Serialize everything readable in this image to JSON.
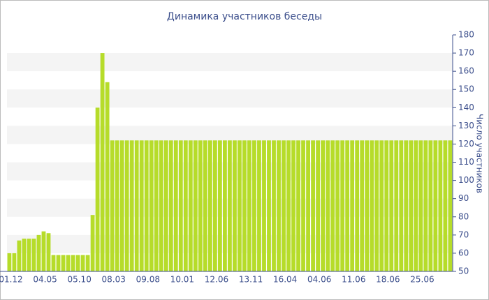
{
  "chart_data": {
    "type": "bar",
    "title": "Динамика участников беседы",
    "y_label": "Число участников",
    "categories": [
      "01.12",
      null,
      null,
      null,
      null,
      null,
      null,
      "04.05",
      null,
      null,
      null,
      null,
      null,
      null,
      "05.10",
      null,
      null,
      null,
      null,
      null,
      null,
      "08.03",
      null,
      null,
      null,
      null,
      null,
      null,
      "09.08",
      null,
      null,
      null,
      null,
      null,
      null,
      "10.01",
      null,
      null,
      null,
      null,
      null,
      null,
      "12.06",
      null,
      null,
      null,
      null,
      null,
      null,
      "13.11",
      null,
      null,
      null,
      null,
      null,
      null,
      "16.04",
      null,
      null,
      null,
      null,
      null,
      null,
      "04.06",
      null,
      null,
      null,
      null,
      null,
      null,
      "11.06",
      null,
      null,
      null,
      null,
      null,
      null,
      "18.06",
      null,
      null,
      null,
      null,
      null,
      null,
      "25.06",
      null,
      null,
      null,
      null,
      null,
      null
    ],
    "values": [
      60,
      60,
      67,
      68,
      68,
      68,
      70,
      72,
      71,
      59,
      59,
      59,
      59,
      59,
      59,
      59,
      59,
      81,
      140,
      170,
      154,
      122,
      122,
      122,
      122,
      122,
      122,
      122,
      122,
      122,
      122,
      122,
      122,
      122,
      122,
      122,
      122,
      122,
      122,
      122,
      122,
      122,
      122,
      122,
      122,
      122,
      122,
      122,
      122,
      122,
      122,
      122,
      122,
      122,
      122,
      122,
      122,
      122,
      122,
      122,
      122,
      122,
      122,
      122,
      122,
      122,
      122,
      122,
      122,
      122,
      122,
      122,
      122,
      122,
      122,
      122,
      122,
      122,
      122,
      122,
      122,
      122,
      122,
      122,
      122,
      122,
      122,
      122,
      122,
      122,
      122
    ],
    "color": "#b6dc2a",
    "ylim": [
      50,
      180
    ],
    "yticks": [
      50,
      60,
      70,
      80,
      90,
      100,
      110,
      120,
      130,
      140,
      150,
      160,
      170,
      180
    ],
    "y_axis_side": "right",
    "grid": "bands"
  }
}
